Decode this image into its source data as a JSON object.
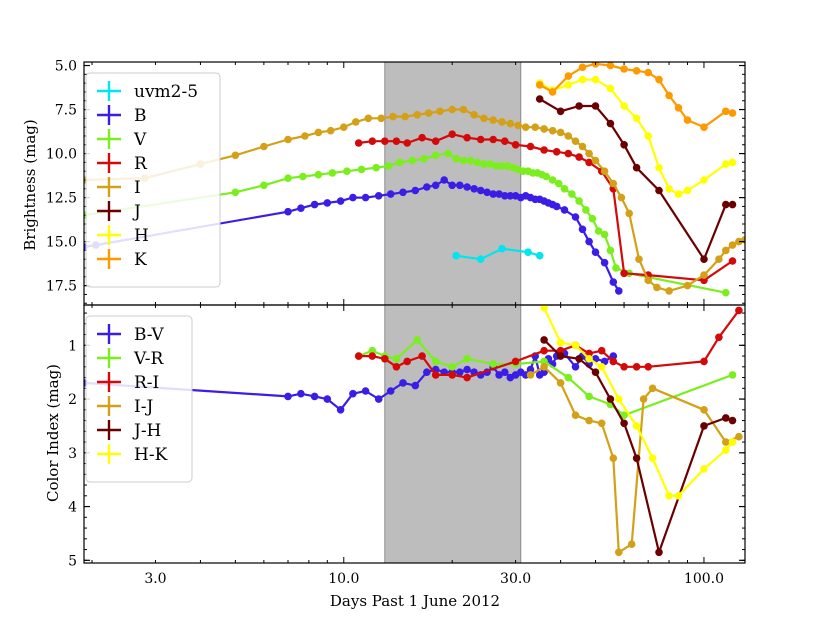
{
  "chart_data": [
    {
      "type": "line",
      "panel": "top",
      "ylabel": "Brightness (mag)",
      "yaxis_inverted": true,
      "ylim": [
        18.6,
        4.8
      ],
      "xlim": [
        1.9,
        130
      ],
      "xscale": "log",
      "yticks": [
        5.0,
        7.5,
        10.0,
        12.5,
        15.0,
        17.5
      ],
      "ytick_labels": [
        "5.0",
        "7.5",
        "10.0",
        "12.5",
        "15.0",
        "17.5"
      ],
      "shaded_region": [
        13.0,
        31.0
      ],
      "legend": [
        "uvm2-5",
        "B",
        "V",
        "R",
        "I",
        "J",
        "H",
        "K"
      ],
      "series": [
        {
          "name": "uvm2-5",
          "color": "#00e5ee",
          "x": [
            20.5,
            24.0,
            27.5,
            32.5,
            35.0
          ],
          "y": [
            15.8,
            16.0,
            15.4,
            15.6,
            15.8
          ]
        },
        {
          "name": "B",
          "color": "#3a1ee6",
          "x": [
            1.9,
            2.05,
            7.0,
            7.6,
            8.3,
            9.0,
            9.8,
            10.6,
            11.5,
            12.5,
            13.5,
            14.6,
            15.8,
            17.0,
            18.0,
            19.0,
            20.0,
            21.0,
            22.0,
            23.0,
            24.0,
            25.0,
            26.0,
            27.0,
            28.0,
            29.0,
            30.0,
            31.0,
            32.0,
            33.0,
            34.0,
            35.0,
            36.0,
            37.0,
            38.0,
            39.0,
            41.0,
            44.0,
            46.0,
            48.0,
            50.0,
            53.0,
            56.0,
            58.0
          ],
          "y": [
            15.3,
            15.2,
            13.3,
            13.1,
            12.9,
            12.8,
            12.7,
            12.5,
            12.5,
            12.4,
            12.3,
            12.2,
            12.1,
            11.9,
            11.8,
            11.5,
            11.8,
            11.8,
            11.9,
            12.0,
            12.1,
            12.2,
            12.3,
            12.3,
            12.4,
            12.4,
            12.4,
            12.5,
            12.4,
            12.5,
            12.6,
            12.6,
            12.7,
            12.8,
            12.9,
            13.0,
            13.2,
            13.6,
            14.3,
            15.0,
            15.6,
            16.2,
            17.3,
            17.8
          ]
        },
        {
          "name": "V",
          "color": "#7bee1e",
          "x": [
            1.9,
            5.0,
            6.0,
            7.0,
            7.7,
            8.5,
            9.3,
            10.2,
            11.2,
            12.3,
            13.3,
            14.3,
            15.5,
            16.7,
            18.0,
            19.5,
            20.5,
            21.5,
            22.5,
            23.5,
            24.5,
            25.5,
            26.5,
            27.5,
            28.5,
            29.5,
            30.5,
            31.5,
            32.5,
            33.5,
            34.5,
            35.5,
            36.5,
            38.0,
            39.5,
            41.0,
            43.0,
            45.0,
            47.0,
            49.0,
            51.0,
            53.0,
            55.0,
            57.0,
            62.0,
            115.0
          ],
          "y": [
            13.5,
            12.2,
            11.8,
            11.4,
            11.3,
            11.2,
            11.1,
            11.0,
            10.9,
            10.8,
            10.7,
            10.5,
            10.4,
            10.3,
            10.1,
            10.0,
            10.3,
            10.4,
            10.4,
            10.5,
            10.6,
            10.6,
            10.7,
            10.7,
            10.7,
            10.8,
            10.9,
            11.0,
            11.0,
            11.1,
            11.1,
            11.2,
            11.3,
            11.5,
            11.7,
            12.0,
            12.3,
            12.7,
            13.2,
            13.7,
            14.4,
            14.6,
            15.5,
            16.5,
            16.8,
            17.9
          ]
        },
        {
          "name": "R",
          "color": "#d40a0a",
          "x": [
            11.0,
            12.0,
            13.0,
            14.0,
            15.0,
            16.5,
            18.0,
            20.0,
            22.0,
            24.0,
            26.0,
            28.0,
            30.0,
            33.0,
            36.0,
            39.0,
            42.0,
            45.0,
            48.0,
            52.0,
            56.0,
            60.0,
            70.0,
            100.0,
            120.0
          ],
          "y": [
            9.4,
            9.3,
            9.3,
            9.3,
            9.4,
            9.1,
            9.3,
            8.9,
            9.1,
            9.2,
            9.2,
            9.3,
            9.5,
            9.6,
            9.8,
            9.9,
            10.0,
            10.2,
            10.5,
            11.0,
            12.0,
            16.8,
            16.9,
            17.2,
            16.1
          ]
        },
        {
          "name": "I",
          "color": "#d4a017",
          "x": [
            1.9,
            2.8,
            4.0,
            5.0,
            6.0,
            7.0,
            7.8,
            8.5,
            9.2,
            10.0,
            10.8,
            11.7,
            12.7,
            13.7,
            14.8,
            16.0,
            17.2,
            18.5,
            20.0,
            21.5,
            23.0,
            24.5,
            26.0,
            27.5,
            29.0,
            30.5,
            32.0,
            34.0,
            36.0,
            38.0,
            40.0,
            42.0,
            44.0,
            46.0,
            48.0,
            50.0,
            53.0,
            56.0,
            59.0,
            62.0,
            66.0,
            70.0,
            74.0,
            80.0,
            90.0,
            100.0,
            110.0,
            115.0,
            120.0,
            125.0,
            130.0
          ],
          "y": [
            11.5,
            11.4,
            10.6,
            10.1,
            9.6,
            9.2,
            9.0,
            8.8,
            8.7,
            8.5,
            8.2,
            8.0,
            8.0,
            7.9,
            7.9,
            7.8,
            7.7,
            7.6,
            7.5,
            7.5,
            7.8,
            8.0,
            8.1,
            8.2,
            8.3,
            8.4,
            8.5,
            8.5,
            8.6,
            8.7,
            8.8,
            9.0,
            9.3,
            9.6,
            10.0,
            10.4,
            11.0,
            11.7,
            12.5,
            13.4,
            16.0,
            17.2,
            17.6,
            17.8,
            17.5,
            16.9,
            16.0,
            15.5,
            15.2,
            15.0,
            14.9
          ]
        },
        {
          "name": "J",
          "color": "#6b0000",
          "x": [
            35.0,
            40.0,
            45.0,
            50.0,
            55.0,
            60.0,
            65.0,
            75.0,
            100.0,
            115.0,
            120.0
          ],
          "y": [
            6.9,
            7.6,
            7.3,
            7.3,
            8.3,
            9.5,
            10.8,
            12.1,
            16.0,
            12.9,
            12.9
          ]
        },
        {
          "name": "H",
          "color": "#ffff00",
          "x": [
            35.0,
            38.0,
            42.0,
            46.0,
            50.0,
            55.0,
            60.0,
            65.0,
            70.0,
            75.0,
            80.0,
            85.0,
            90.0,
            100.0,
            115.0,
            120.0
          ],
          "y": [
            6.0,
            6.4,
            6.1,
            5.8,
            5.8,
            6.3,
            7.3,
            8.0,
            9.0,
            10.8,
            12.0,
            12.3,
            12.1,
            11.5,
            10.6,
            10.5
          ]
        },
        {
          "name": "K",
          "color": "#ff9900",
          "x": [
            35.0,
            38.0,
            42.0,
            46.0,
            50.0,
            55.0,
            60.0,
            65.0,
            70.0,
            75.0,
            80.0,
            85.0,
            90.0,
            100.0,
            115.0,
            120.0
          ],
          "y": [
            6.1,
            6.5,
            5.6,
            5.1,
            4.9,
            5.0,
            5.2,
            5.3,
            5.4,
            5.8,
            6.7,
            7.4,
            8.1,
            8.5,
            7.6,
            7.7
          ]
        }
      ]
    },
    {
      "type": "line",
      "panel": "bottom",
      "ylabel": "Color Index (mag)",
      "yaxis_inverted": true,
      "ylim": [
        5.05,
        0.25
      ],
      "xlim": [
        1.9,
        130
      ],
      "xscale": "log",
      "xlabel": "Days Past 1 June 2012",
      "xticks": [
        3.0,
        10.0,
        30.0,
        100.0
      ],
      "xtick_labels": [
        "3.0",
        "10.0",
        "30.0",
        "100.0"
      ],
      "yticks": [
        1,
        2,
        3,
        4,
        5
      ],
      "ytick_labels": [
        "1",
        "2",
        "3",
        "4",
        "5"
      ],
      "shaded_region": [
        13.0,
        31.0
      ],
      "legend": [
        "B-V",
        "V-R",
        "R-I",
        "I-J",
        "J-H",
        "H-K"
      ],
      "series": [
        {
          "name": "B-V",
          "color": "#3a1ee6",
          "x": [
            1.9,
            7.0,
            7.6,
            8.3,
            9.0,
            9.8,
            10.6,
            11.5,
            12.5,
            13.5,
            14.6,
            15.8,
            17.0,
            18.0,
            19.0,
            20.0,
            21.0,
            22.0,
            23.0,
            24.0,
            25.0,
            26.0,
            27.0,
            28.0,
            29.0,
            30.0,
            31.0,
            32.0,
            33.0,
            34.0,
            35.0,
            36.0,
            37.0,
            38.0,
            39.0,
            41.0,
            44.0,
            46.0,
            48.0,
            50.0,
            53.0,
            56.0
          ],
          "y": [
            1.7,
            1.95,
            1.9,
            1.95,
            2.0,
            2.2,
            1.9,
            1.85,
            2.0,
            1.85,
            1.7,
            1.75,
            1.5,
            1.45,
            1.5,
            1.5,
            1.5,
            1.45,
            1.5,
            1.55,
            1.5,
            1.4,
            1.55,
            1.5,
            1.6,
            1.55,
            1.5,
            1.55,
            1.45,
            1.2,
            1.55,
            1.5,
            1.25,
            1.35,
            1.2,
            1.15,
            1.4,
            1.2,
            1.35,
            1.25,
            1.3,
            1.2
          ]
        },
        {
          "name": "V-R",
          "color": "#7bee1e",
          "x": [
            11.0,
            12.0,
            13.0,
            14.0,
            16.0,
            18.0,
            20.0,
            22.0,
            26.0,
            30.0,
            36.0,
            42.0,
            48.0,
            55.0,
            60.0,
            120.0
          ],
          "y": [
            1.2,
            1.1,
            1.2,
            1.25,
            0.9,
            1.3,
            1.4,
            1.25,
            1.35,
            1.35,
            1.3,
            1.6,
            1.95,
            2.1,
            2.3,
            1.55
          ]
        },
        {
          "name": "R-I",
          "color": "#d40a0a",
          "x": [
            11.0,
            12.0,
            13.0,
            14.0,
            15.0,
            16.5,
            18.0,
            20.0,
            22.0,
            30.0,
            36.0,
            40.0,
            44.0,
            48.0,
            52.0,
            56.0,
            60.0,
            65.0,
            70.0,
            100.0,
            110.0,
            125.0
          ],
          "y": [
            1.2,
            1.2,
            1.25,
            1.4,
            1.3,
            1.2,
            1.55,
            1.55,
            1.6,
            1.3,
            1.1,
            1.1,
            1.0,
            1.15,
            1.1,
            1.3,
            1.4,
            1.4,
            1.4,
            1.3,
            0.85,
            0.35
          ]
        },
        {
          "name": "I-J",
          "color": "#d4a017",
          "x": [
            33.0,
            36.0,
            40.0,
            44.0,
            48.0,
            52.0,
            56.0,
            58.0,
            63.0,
            68.0,
            72.0,
            100.0,
            115.0,
            125.0
          ],
          "y": [
            1.55,
            1.4,
            1.7,
            2.3,
            2.4,
            2.45,
            3.1,
            4.85,
            4.7,
            2.0,
            1.8,
            2.2,
            2.8,
            2.7
          ]
        },
        {
          "name": "J-H",
          "color": "#6b0000",
          "x": [
            36.0,
            40.0,
            45.0,
            50.0,
            55.0,
            60.0,
            65.0,
            75.0,
            100.0,
            115.0,
            120.0
          ],
          "y": [
            0.9,
            1.2,
            1.25,
            1.5,
            2.0,
            2.45,
            3.1,
            4.85,
            2.5,
            2.35,
            2.4
          ]
        },
        {
          "name": "H-K",
          "color": "#ffff00",
          "x": [
            36.0,
            40.0,
            44.0,
            48.0,
            52.0,
            58.0,
            65.0,
            72.0,
            80.0,
            85.0,
            100.0,
            115.0,
            120.0
          ],
          "y": [
            0.3,
            0.95,
            1.0,
            1.25,
            1.4,
            2.0,
            2.5,
            3.1,
            3.8,
            3.8,
            3.3,
            2.95,
            2.8
          ]
        }
      ]
    }
  ]
}
